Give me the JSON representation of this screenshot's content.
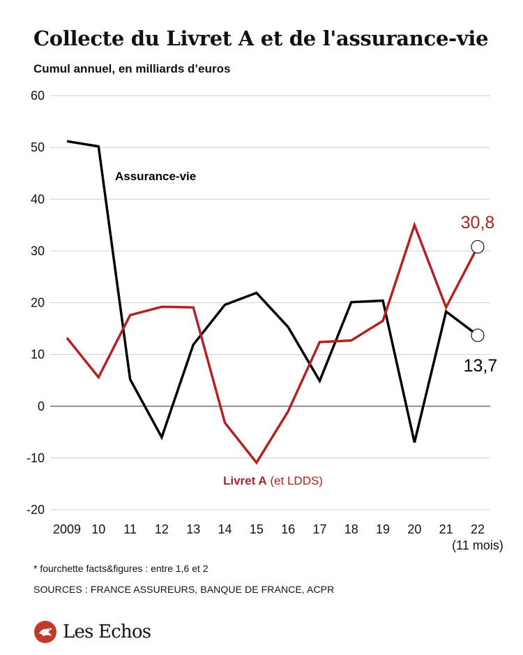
{
  "header": {
    "title": "Collecte du Livret A et de l'assurance-vie",
    "subtitle": "Cumul annuel, en milliards d’euros"
  },
  "footer": {
    "note": "* fourchette facts&figures : entre 1,6 et 2",
    "sources": "SOURCES : FRANCE ASSUREURS, BANQUE DE FRANCE, ACPR",
    "logo": "Les Echos"
  },
  "chart_data": {
    "type": "line",
    "categories": [
      "2009",
      "10",
      "11",
      "12",
      "13",
      "14",
      "15",
      "16",
      "17",
      "18",
      "19",
      "20",
      "21",
      "22"
    ],
    "category_sublabel": {
      "index": 13,
      "text": "(11 mois)"
    },
    "ylim": [
      -20,
      60
    ],
    "yticks": [
      60,
      50,
      40,
      30,
      20,
      10,
      0,
      -10,
      -20
    ],
    "grid": true,
    "series": [
      {
        "name": "Assurance-vie",
        "color": "#000000",
        "values": [
          51.2,
          50.2,
          5.2,
          -6.0,
          11.9,
          19.6,
          21.9,
          15.3,
          4.9,
          20.1,
          20.4,
          -7.0,
          18.3,
          13.7
        ]
      },
      {
        "name": "Livret A",
        "name_suffix": " (et LDDS)",
        "color": "#b22222",
        "values": [
          13.2,
          5.6,
          17.6,
          19.2,
          19.1,
          -3.2,
          -10.9,
          -1.0,
          12.4,
          12.7,
          16.5,
          35.0,
          19.1,
          30.8
        ]
      }
    ],
    "end_labels": {
      "Assurance-vie": "13,7",
      "Livret A": "30,8"
    }
  }
}
